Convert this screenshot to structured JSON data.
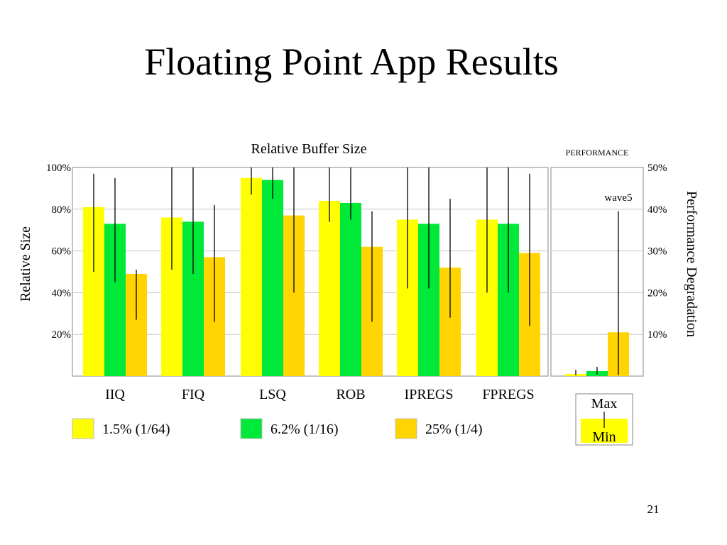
{
  "slide": {
    "title": "Floating Point App Results",
    "page_number": "21"
  },
  "chart_data": [
    {
      "type": "bar",
      "title": "Relative Buffer Size",
      "ylabel": "Relative Size",
      "ylim": [
        0,
        100
      ],
      "yticks": [
        "20%",
        "40%",
        "60%",
        "80%",
        "100%"
      ],
      "ytick_values": [
        20,
        40,
        60,
        80,
        100
      ],
      "grid": true,
      "categories": [
        "IIQ",
        "FIQ",
        "LSQ",
        "ROB",
        "IPREGS",
        "FPREGS"
      ],
      "series": [
        {
          "name": "1.5% (1/64)",
          "color": "#ffff00",
          "values": [
            81,
            76,
            95,
            84,
            75,
            75
          ],
          "range_max": [
            97,
            100,
            100,
            100,
            100,
            100
          ],
          "range_min": [
            50,
            51,
            87,
            74,
            42,
            40
          ]
        },
        {
          "name": "6.2% (1/16)",
          "color": "#00e838",
          "values": [
            73,
            74,
            94,
            83,
            73,
            73
          ],
          "range_max": [
            95,
            100,
            100,
            100,
            100,
            100
          ],
          "range_min": [
            45,
            49,
            85,
            75,
            42,
            40
          ]
        },
        {
          "name": "25% (1/4)",
          "color": "#ffd400",
          "values": [
            49,
            57,
            77,
            62,
            52,
            59
          ],
          "range_max": [
            51,
            82,
            100,
            79,
            85,
            97
          ],
          "range_min": [
            27,
            26,
            40,
            26,
            28,
            24
          ]
        }
      ],
      "legend_position": "bottom"
    },
    {
      "type": "bar",
      "title": "PERFORMANCE",
      "ylabel": "Performance Degradation",
      "ylim": [
        0,
        50
      ],
      "yticks": [
        "10%",
        "20%",
        "30%",
        "40%",
        "50%"
      ],
      "ytick_values": [
        10,
        20,
        30,
        40,
        50
      ],
      "grid": true,
      "annotation": "wave5",
      "series": [
        {
          "name": "1.5% (1/64)",
          "color": "#ffff00",
          "value": 0.5,
          "range_max": 1.5,
          "range_min": 0.2
        },
        {
          "name": "6.2% (1/16)",
          "color": "#00e838",
          "value": 1.2,
          "range_max": 2.2,
          "range_min": 0.4
        },
        {
          "name": "25% (1/4)",
          "color": "#ffd400",
          "value": 10.5,
          "range_max": 39.5,
          "range_min": 0.3
        }
      ]
    }
  ],
  "range_key": {
    "max_label": "Max",
    "min_label": "Min",
    "color": "#ffff00"
  }
}
